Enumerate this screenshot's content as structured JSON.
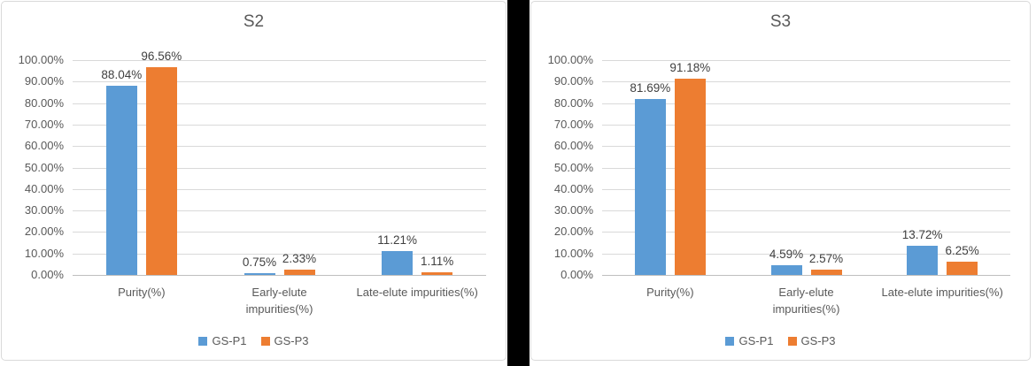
{
  "figure": {
    "divider_color": "#000000",
    "panel_border_color": "#d9d9d9",
    "grid_color": "#d9d9d9",
    "axis_line_color": "#bfbfbf",
    "tick_text_color": "#595959",
    "data_label_color": "#404040"
  },
  "chart_data": [
    {
      "type": "bar",
      "title": "S2",
      "categories": [
        "Purity(%)",
        "Early-elute impurities(%)",
        "Late-elute impurities(%)"
      ],
      "category_lines": [
        [
          "Purity(%)"
        ],
        [
          "Early-elute",
          "impurities(%)"
        ],
        [
          "Late-elute impurities(%)"
        ]
      ],
      "series": [
        {
          "name": "GS-P1",
          "color": "#5B9BD5",
          "values": [
            88.04,
            0.75,
            11.21
          ],
          "labels": [
            "88.04%",
            "0.75%",
            "11.21%"
          ]
        },
        {
          "name": "GS-P3",
          "color": "#ED7D31",
          "values": [
            96.56,
            2.33,
            1.11
          ],
          "labels": [
            "96.56%",
            "2.33%",
            "1.11%"
          ]
        }
      ],
      "xlabel": "",
      "ylabel": "",
      "ylim": [
        0,
        100
      ],
      "y_ticks": [
        "0.00%",
        "10.00%",
        "20.00%",
        "30.00%",
        "40.00%",
        "50.00%",
        "60.00%",
        "70.00%",
        "80.00%",
        "90.00%",
        "100.00%"
      ],
      "grid": true,
      "legend_position": "bottom",
      "legend": [
        "GS-P1",
        "GS-P3"
      ]
    },
    {
      "type": "bar",
      "title": "S3",
      "categories": [
        "Purity(%)",
        "Early-elute impurities(%)",
        "Late-elute impurities(%)"
      ],
      "category_lines": [
        [
          "Purity(%)"
        ],
        [
          "Early-elute",
          "impurities(%)"
        ],
        [
          "Late-elute impurities(%)"
        ]
      ],
      "series": [
        {
          "name": "GS-P1",
          "color": "#5B9BD5",
          "values": [
            81.69,
            4.59,
            13.72
          ],
          "labels": [
            "81.69%",
            "4.59%",
            "13.72%"
          ]
        },
        {
          "name": "GS-P3",
          "color": "#ED7D31",
          "values": [
            91.18,
            2.57,
            6.25
          ],
          "labels": [
            "91.18%",
            "2.57%",
            "6.25%"
          ]
        }
      ],
      "xlabel": "",
      "ylabel": "",
      "ylim": [
        0,
        100
      ],
      "y_ticks": [
        "0.00%",
        "10.00%",
        "20.00%",
        "30.00%",
        "40.00%",
        "50.00%",
        "60.00%",
        "70.00%",
        "80.00%",
        "90.00%",
        "100.00%"
      ],
      "grid": true,
      "legend_position": "bottom",
      "legend": [
        "GS-P1",
        "GS-P3"
      ]
    }
  ]
}
